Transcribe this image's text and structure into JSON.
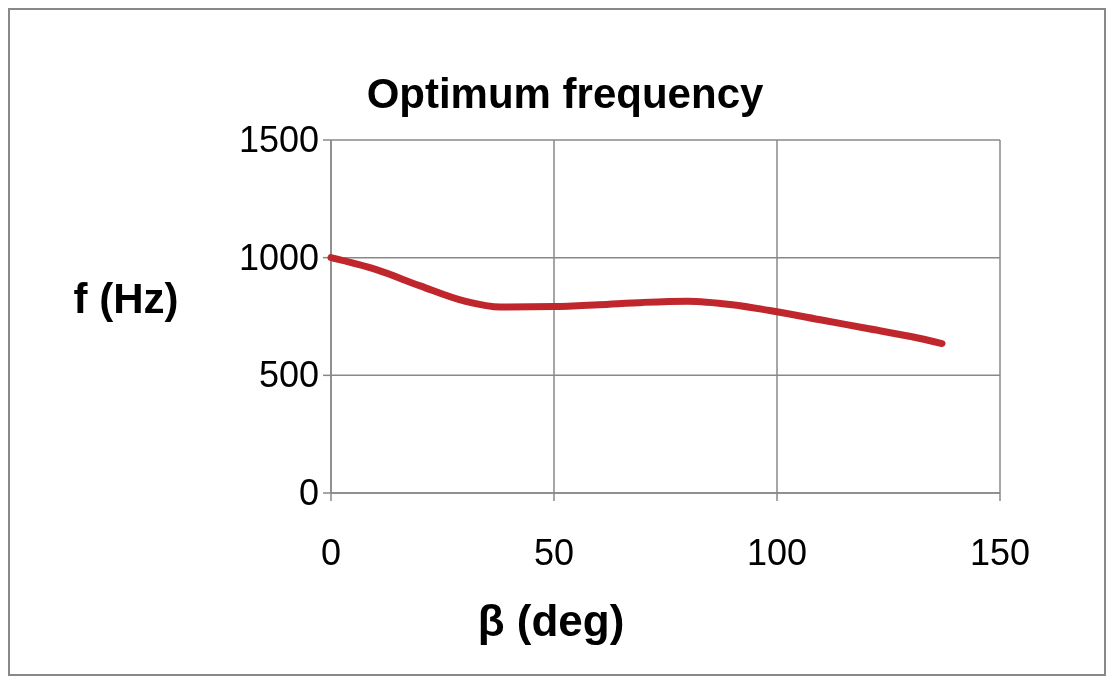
{
  "chart_data": {
    "type": "line",
    "title": "Optimum frequency",
    "xlabel": "β (deg)",
    "ylabel": "f (Hz)",
    "x": [
      0,
      10,
      20,
      30,
      38,
      50,
      60,
      70,
      80,
      90,
      100,
      110,
      120,
      130,
      137
    ],
    "series": [
      {
        "color": "#c0272d",
        "values": [
          1000,
          950,
          880,
          815,
          790,
          792,
          800,
          810,
          815,
          800,
          770,
          735,
          700,
          665,
          635
        ]
      }
    ],
    "xlim": [
      0,
      150
    ],
    "xticks": [
      0,
      50,
      100,
      150
    ],
    "ylim": [
      0,
      1500
    ],
    "yticks": [
      0,
      500,
      1000,
      1500
    ],
    "grid": true,
    "marker": "none",
    "line_style": "solid"
  }
}
